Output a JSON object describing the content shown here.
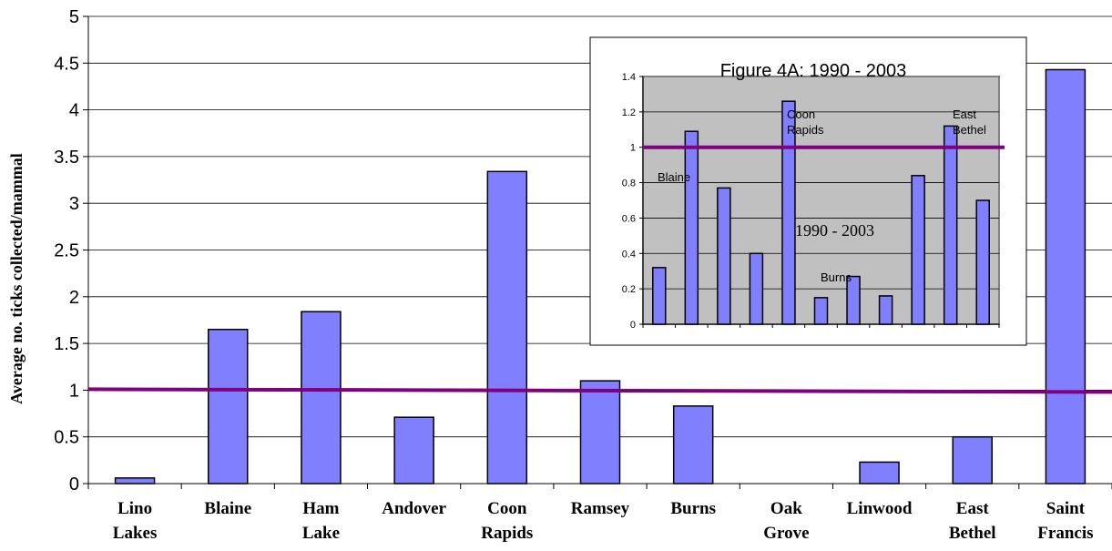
{
  "chart_data": [
    {
      "type": "bar",
      "ylabel": "Average no. ticks collected/mammal",
      "xlabel": "",
      "ylim": [
        0,
        5
      ],
      "yticks": [
        "0",
        "0.5",
        "1",
        "1.5",
        "2",
        "2.5",
        "3",
        "3.5",
        "4",
        "4.5",
        "5"
      ],
      "grid": true,
      "categories": [
        [
          "Lino",
          "Lakes"
        ],
        [
          "Blaine"
        ],
        [
          "Ham",
          "Lake"
        ],
        [
          "Andover"
        ],
        [
          "Coon",
          "Rapids"
        ],
        [
          "Ramsey"
        ],
        [
          "Burns"
        ],
        [
          "Oak",
          "Grove"
        ],
        [
          "Linwood"
        ],
        [
          "East",
          "Bethel"
        ],
        [
          "Saint",
          "Francis"
        ]
      ],
      "values": [
        0.06,
        1.65,
        1.84,
        0.71,
        3.34,
        1.1,
        0.83,
        0,
        0.23,
        0.5,
        4.43
      ],
      "reference_line": 1,
      "colors": {
        "bar": "#8080ff",
        "bar_edge": "#000000",
        "reference": "#800080",
        "grid": "#000000"
      }
    },
    {
      "type": "bar",
      "title": "Figure 4A:  1990 - 2003",
      "ylim": [
        0,
        1.4
      ],
      "yticks": [
        "0",
        "0.2",
        "0.4",
        "0.6",
        "0.8",
        "1",
        "1.2",
        "1.4"
      ],
      "grid": true,
      "values": [
        0.32,
        1.09,
        0.77,
        0.4,
        1.26,
        0.15,
        0.27,
        0.16,
        0.84,
        1.12,
        0.7
      ],
      "reference_line": 1,
      "annotations": [
        [
          "Blaine"
        ],
        [
          "Coon",
          "Rapids"
        ],
        [
          "East",
          "Bethel"
        ],
        [
          "1990 - 2003"
        ],
        [
          "Burns"
        ]
      ],
      "colors": {
        "bar": "#8080ff",
        "plot_bg": "#c0c0c0",
        "reference": "#800080"
      }
    }
  ]
}
